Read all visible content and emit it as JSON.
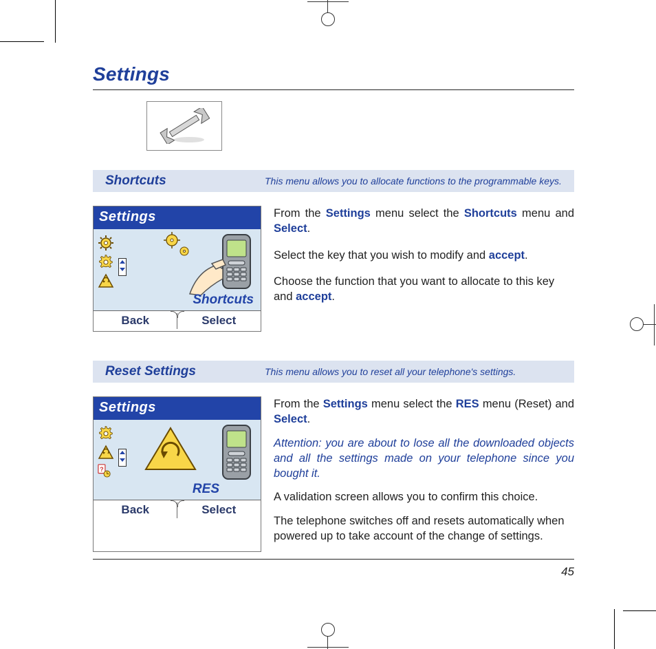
{
  "page": {
    "title": "Settings",
    "number": "45",
    "colors": {
      "heading_blue": "#1f3f9a",
      "bar_bg": "#dce3f0",
      "screen_title_bg": "#2244a8",
      "screen_body_bg": "#d8e6f2",
      "icon_yellow_fill": "#f8d648",
      "icon_outline": "#6a4b00",
      "phone_gray": "#9aa0a6",
      "phone_screen": "#bfe28a"
    }
  },
  "sections": [
    {
      "title": "Shortcuts",
      "description": "This menu allows you to allocate functions to the programmable keys.",
      "screenshot": {
        "title": "Settings",
        "menu_label": "Shortcuts",
        "softkeys": {
          "left": "Back",
          "right": "Select"
        },
        "left_icons": [
          "gear-sun",
          "gear",
          "warning-reset"
        ],
        "art": "hand-phone-gears"
      },
      "body": [
        {
          "parts": [
            {
              "t": "From the "
            },
            {
              "t": "Settings",
              "cls": "blue-bold"
            },
            {
              "t": " menu select the "
            },
            {
              "t": "Shortcuts",
              "cls": "blue-bold"
            },
            {
              "t": " menu and "
            },
            {
              "t": "Select",
              "cls": "blue-bold"
            },
            {
              "t": "."
            }
          ],
          "spread": true
        },
        {
          "parts": [
            {
              "t": "Select the key that you wish to modify and "
            },
            {
              "t": "accept",
              "cls": "blue-bold"
            },
            {
              "t": "."
            }
          ]
        },
        {
          "parts": [
            {
              "t": "Choose the function that you want to allocate to this key and "
            },
            {
              "t": "accept",
              "cls": "blue-bold"
            },
            {
              "t": "."
            }
          ]
        }
      ]
    },
    {
      "title": "Reset Settings",
      "description": "This menu allows you to reset all your telephone's settings.",
      "screenshot": {
        "title": "Settings",
        "menu_label": "RES",
        "softkeys": {
          "left": "Back",
          "right": "Select"
        },
        "left_icons": [
          "gear",
          "warning-reset",
          "clock-question"
        ],
        "art": "warning-phone"
      },
      "body": [
        {
          "parts": [
            {
              "t": "From the "
            },
            {
              "t": "Settings",
              "cls": "blue-bold"
            },
            {
              "t": " menu select the "
            },
            {
              "t": "RES",
              "cls": "blue-bold"
            },
            {
              "t": " menu (Reset) and "
            },
            {
              "t": "Select",
              "cls": "blue-bold"
            },
            {
              "t": "."
            }
          ],
          "spread": true
        },
        {
          "parts": [
            {
              "t": "Attention:  you are about to lose all the downloaded objects and all the settings made on your telephone since you bought it.",
              "cls": "blue-italic"
            }
          ],
          "spread": true
        },
        {
          "parts": [
            {
              "t": "A validation screen allows you to confirm this choice."
            }
          ]
        },
        {
          "parts": [
            {
              "t": "The telephone switches off and resets automatically when powe­red up to take account of the change of settings."
            }
          ]
        }
      ]
    }
  ]
}
